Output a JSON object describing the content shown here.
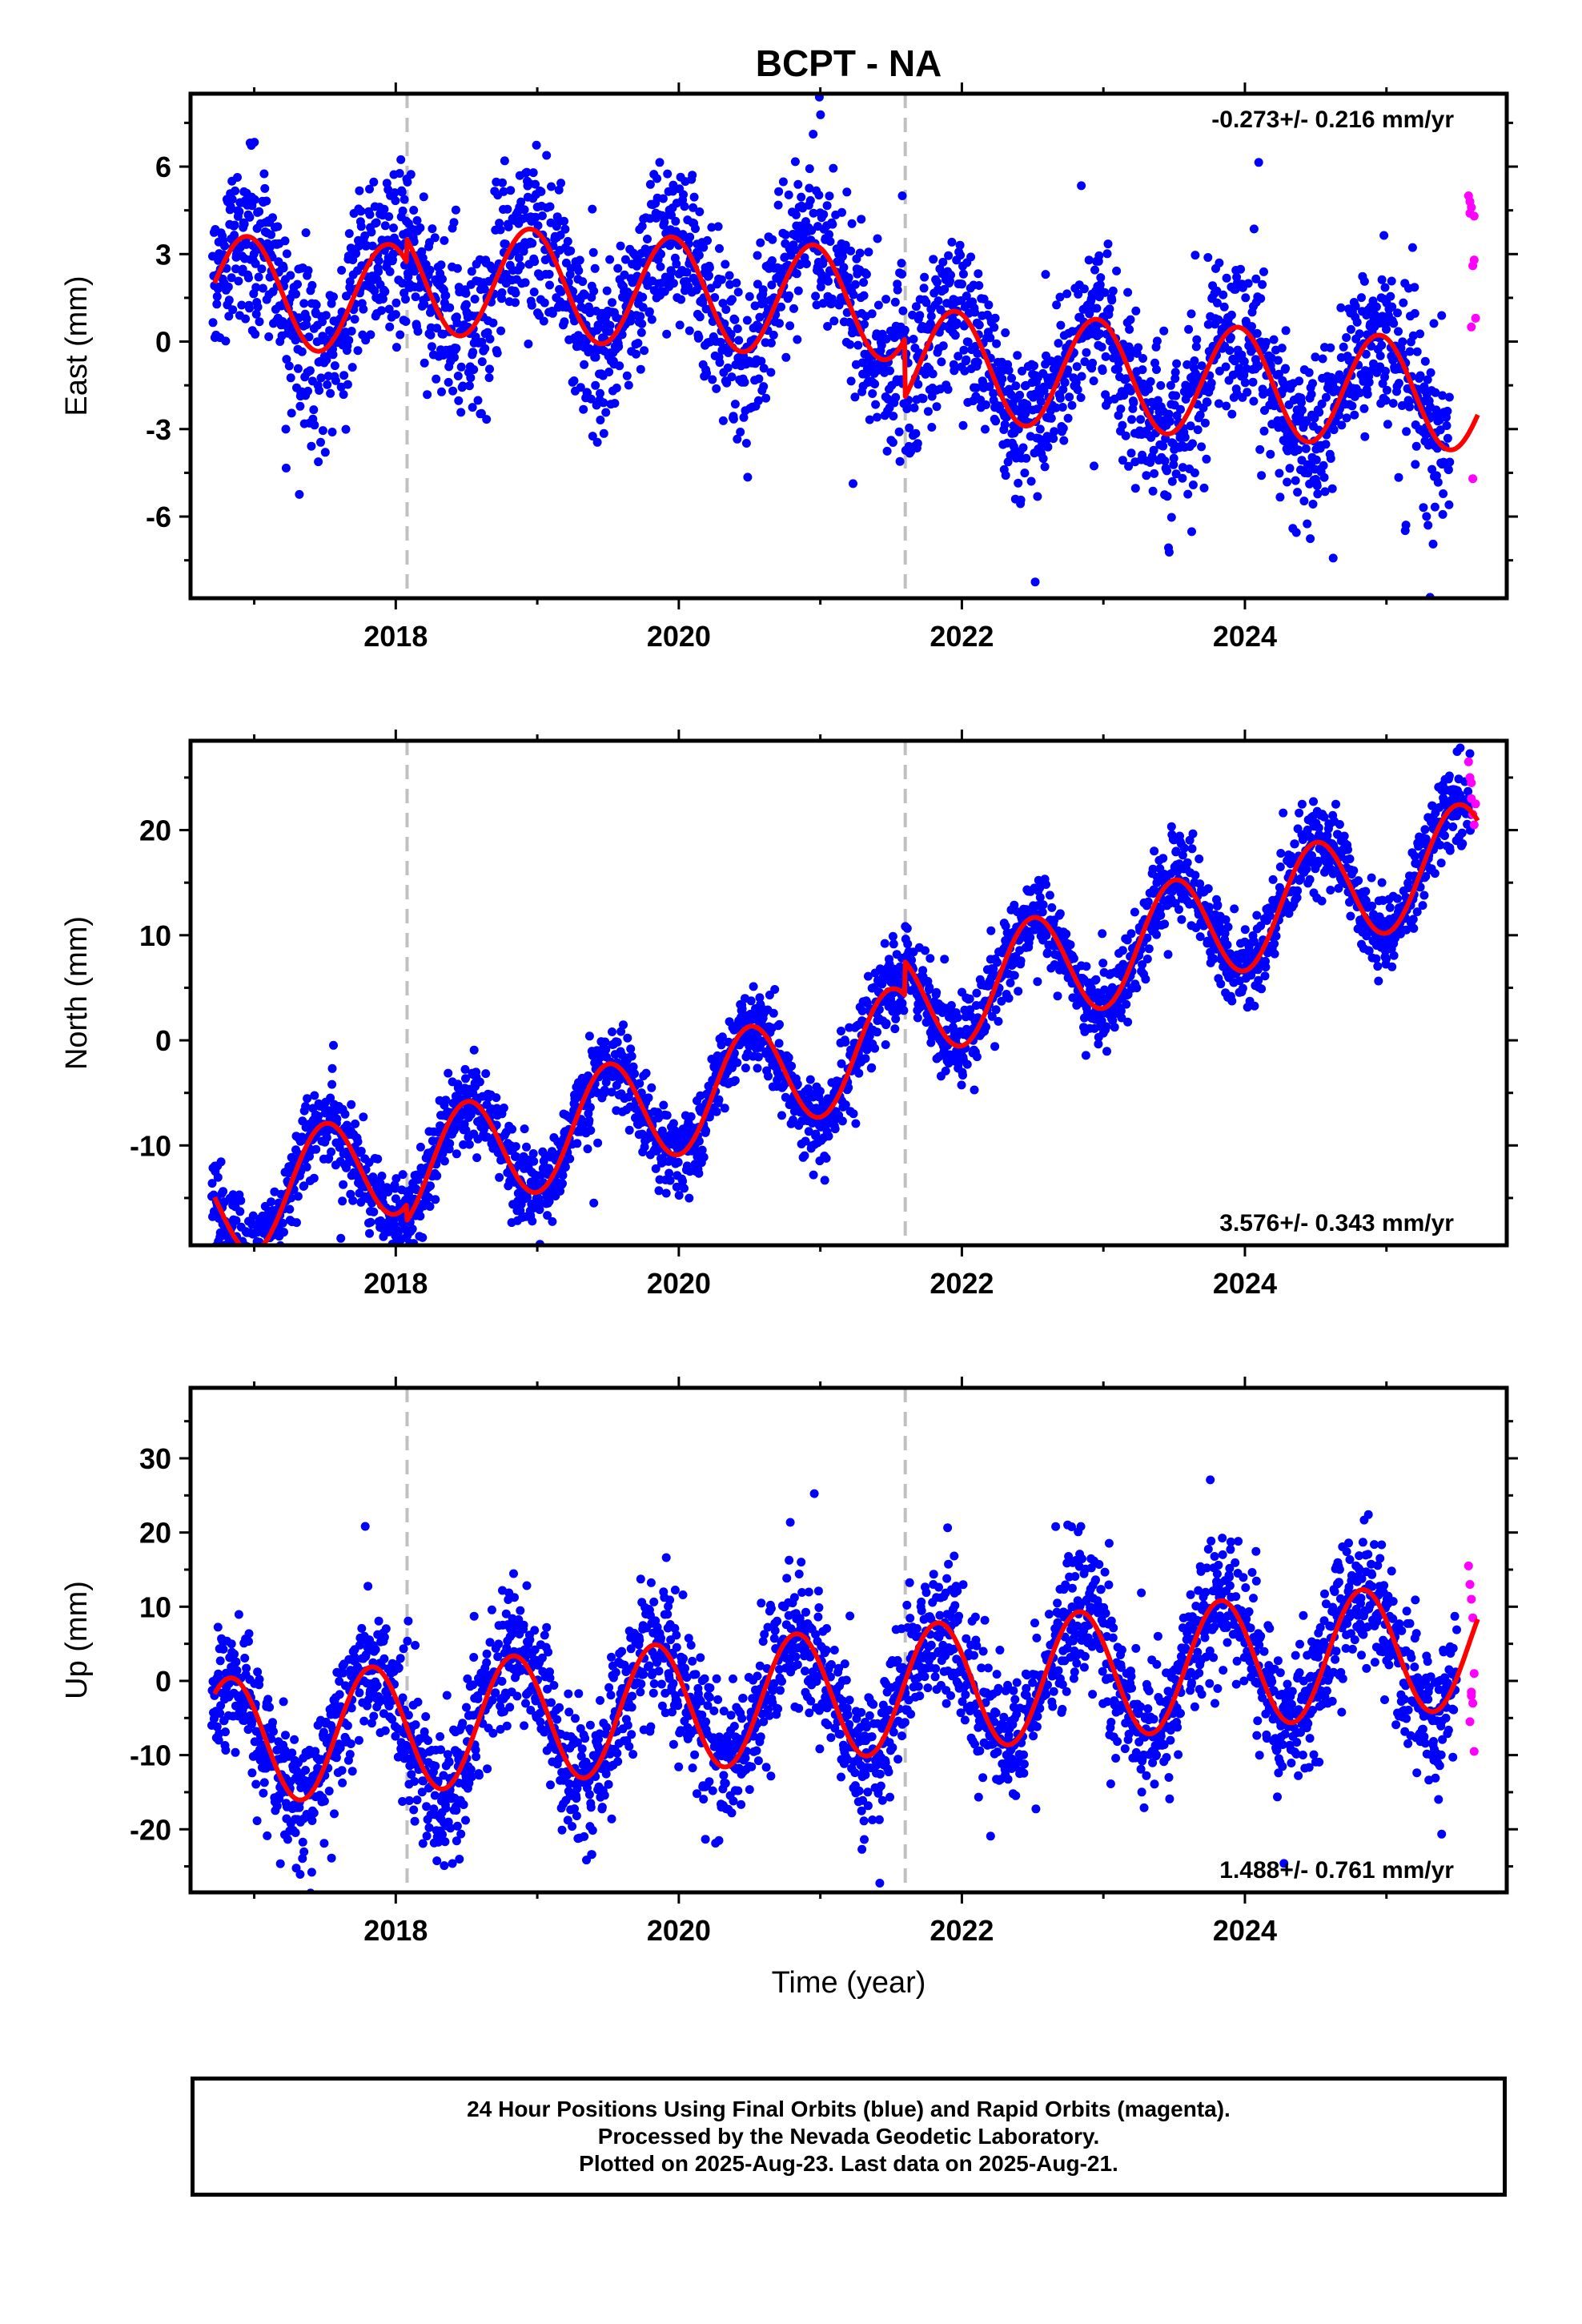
{
  "colors": {
    "final_orbits": "#0000ff",
    "rapid_orbits": "#ff00ff",
    "model": "#ff0000",
    "offset_lines": "#c0c0c0",
    "frame": "#000000"
  },
  "caption": {
    "line1": "24 Hour Positions Using Final Orbits (blue) and Rapid Orbits (magenta).",
    "line2": "Processed by the Nevada Geodetic Laboratory.",
    "line3": "Plotted on 2025-Aug-23. Last data on 2025-Aug-21."
  },
  "chart_data": [
    {
      "type": "scatter",
      "title": "BCPT - NA",
      "ylabel": "East (mm)",
      "xlabel": "",
      "xlim": [
        2016.55,
        2025.85
      ],
      "ylim": [
        -8.8,
        8.5
      ],
      "xticks": [
        2018,
        2020,
        2022,
        2024
      ],
      "yticks": [
        -6,
        -3,
        0,
        3,
        6
      ],
      "annotation": "-0.273+/- 0.216 mm/yr",
      "annotation_position": "top-right",
      "offset_lines": [
        2018.08,
        2021.6
      ],
      "model": {
        "offset": 0.6,
        "trend": -0.273,
        "annual_amp": 1.9,
        "annual_peak": 2016.95,
        "ref_year": 2021.0,
        "steps": [
          [
            2018.08,
            0.8
          ],
          [
            2021.6,
            -2.0
          ]
        ]
      },
      "series": [
        {
          "name": "Final Orbits",
          "scatter_sd": 1.35,
          "x_range": [
            2016.7,
            2025.45
          ]
        },
        {
          "name": "Rapid Orbits",
          "x": [
            2025.58,
            2025.59,
            2025.6,
            2025.61,
            2025.62,
            2025.63,
            2025.6,
            2025.61,
            2025.59,
            2025.62
          ],
          "y": [
            5.0,
            4.4,
            4.6,
            2.6,
            2.8,
            0.8,
            0.5,
            -4.7,
            4.8,
            4.3
          ]
        }
      ]
    },
    {
      "type": "scatter",
      "ylabel": "North (mm)",
      "xlabel": "",
      "xlim": [
        2016.55,
        2025.85
      ],
      "ylim": [
        -19.5,
        28.5
      ],
      "xticks": [
        2018,
        2020,
        2022,
        2024
      ],
      "yticks": [
        -10,
        0,
        10,
        20
      ],
      "annotation": "3.576+/- 0.343 mm/yr",
      "annotation_position": "bottom-right",
      "offset_lines": [
        2018.08,
        2021.6
      ],
      "model": {
        "offset": -0.6,
        "trend": 3.576,
        "annual_amp": 5.2,
        "annual_peak": 2017.5,
        "ref_year": 2021.0,
        "steps": [
          [
            2018.08,
            -1.5
          ],
          [
            2021.6,
            3.2
          ]
        ]
      },
      "series": [
        {
          "name": "Final Orbits",
          "scatter_sd": 1.9,
          "x_range": [
            2016.7,
            2025.6
          ]
        },
        {
          "name": "Rapid Orbits",
          "x": [
            2025.58,
            2025.59,
            2025.6,
            2025.61,
            2025.62,
            2025.63,
            2025.6
          ],
          "y": [
            26.5,
            25.0,
            23.0,
            21.5,
            20.5,
            22.5,
            24.5
          ]
        }
      ]
    },
    {
      "type": "scatter",
      "ylabel": "Up (mm)",
      "xlabel": "Time (year)",
      "xlim": [
        2016.55,
        2025.85
      ],
      "ylim": [
        -28.5,
        39.5
      ],
      "xticks": [
        2018,
        2020,
        2022,
        2024
      ],
      "yticks": [
        -20,
        -10,
        0,
        10,
        20,
        30
      ],
      "annotation": "1.488+/- 0.761 mm/yr",
      "annotation_position": "bottom-right",
      "offset_lines": [
        2018.08,
        2021.6
      ],
      "model": {
        "offset": -2.0,
        "trend": 1.488,
        "annual_amp": 8.6,
        "annual_peak": 2016.83,
        "ref_year": 2021.0,
        "steps": []
      },
      "series": [
        {
          "name": "Final Orbits",
          "scatter_sd": 4.5,
          "x_range": [
            2016.7,
            2025.5
          ]
        },
        {
          "name": "Rapid Orbits",
          "x": [
            2025.58,
            2025.59,
            2025.6,
            2025.61,
            2025.62,
            2025.6,
            2025.61,
            2025.59,
            2025.62,
            2025.6
          ],
          "y": [
            15.5,
            13.0,
            11.0,
            8.5,
            1.0,
            -1.5,
            -3.0,
            -5.5,
            -9.5,
            -2.0
          ]
        }
      ]
    }
  ]
}
